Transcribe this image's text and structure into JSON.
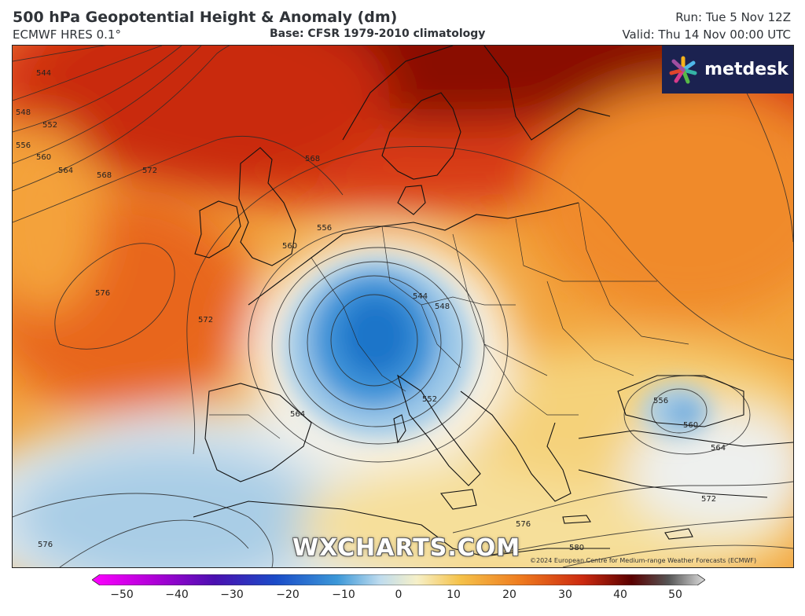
{
  "header": {
    "title": "500 hPa Geopotential Height & Anomaly (dm)",
    "model": "ECMWF HRES 0.1°",
    "base": "Base: CFSR 1979-2010 climatology",
    "run": "Run: Tue 5 Nov 12Z",
    "valid": "Valid: Thu 14 Nov 00:00 UTC"
  },
  "logo": {
    "text": "metdesk",
    "icon": "starburst-logo-icon"
  },
  "watermark": "WXCHARTS.COM",
  "copyright": "©2024 European Centre for Medium-range Weather Forecasts (ECMWF)",
  "contour_labels": [
    "544",
    "548",
    "552",
    "556",
    "560",
    "564",
    "568",
    "572",
    "576",
    "580"
  ],
  "colorbar": {
    "ticks": [
      "−50",
      "−40",
      "−30",
      "−20",
      "−10",
      "0",
      "10",
      "20",
      "30",
      "40",
      "50"
    ],
    "range": [
      -50,
      50
    ],
    "colors": [
      "#e600e6",
      "#7a00c8",
      "#2a14a0",
      "#1c5fd0",
      "#3c98d8",
      "#bfdcee",
      "#f6f0c8",
      "#f5c24a",
      "#ee7a1e",
      "#cc2a10",
      "#6a0000",
      "#cfcfcf"
    ]
  },
  "colors": {
    "deep_red": "#8a0a00",
    "red": "#cc2a10",
    "orange": "#ee7a1e",
    "yellow": "#f5c24a",
    "pale": "#f8efc8",
    "light_blue": "#cfe3f0",
    "blue": "#3c98d8",
    "deep_blue": "#1c6fc8"
  }
}
